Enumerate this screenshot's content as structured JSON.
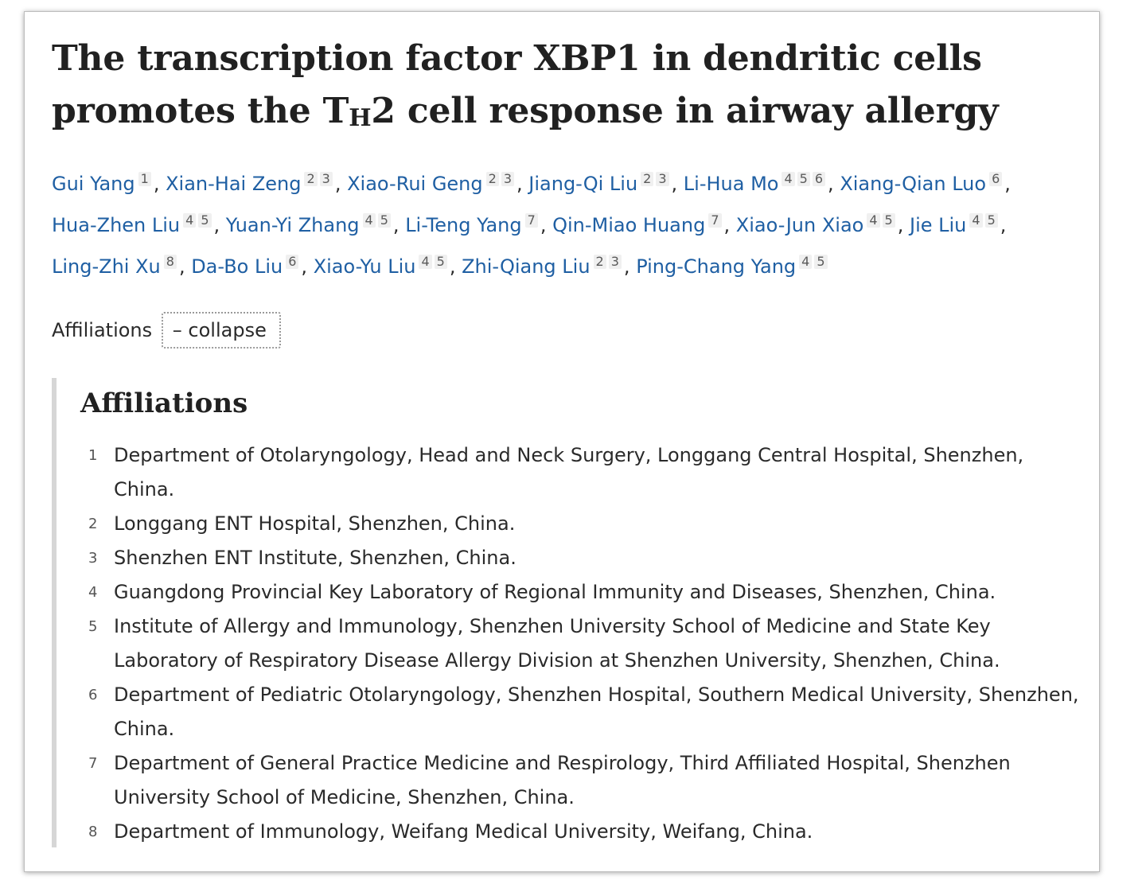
{
  "title": {
    "part1": "The transcription factor XBP1 in dendritic cells promotes the T",
    "subscript": "H",
    "part2": "2 cell response in airway allergy"
  },
  "authors": [
    {
      "name": "Gui Yang",
      "affs": [
        "1"
      ]
    },
    {
      "name": "Xian-Hai Zeng",
      "affs": [
        "2",
        "3"
      ]
    },
    {
      "name": "Xiao-Rui Geng",
      "affs": [
        "2",
        "3"
      ]
    },
    {
      "name": "Jiang-Qi Liu",
      "affs": [
        "2",
        "3"
      ]
    },
    {
      "name": "Li-Hua Mo",
      "affs": [
        "4",
        "5",
        "6"
      ]
    },
    {
      "name": "Xiang-Qian Luo",
      "affs": [
        "6"
      ]
    },
    {
      "name": "Hua-Zhen Liu",
      "affs": [
        "4",
        "5"
      ]
    },
    {
      "name": "Yuan-Yi Zhang",
      "affs": [
        "4",
        "5"
      ]
    },
    {
      "name": "Li-Teng Yang",
      "affs": [
        "7"
      ]
    },
    {
      "name": "Qin-Miao Huang",
      "affs": [
        "7"
      ]
    },
    {
      "name": "Xiao-Jun Xiao",
      "affs": [
        "4",
        "5"
      ]
    },
    {
      "name": "Jie Liu",
      "affs": [
        "4",
        "5"
      ]
    },
    {
      "name": "Ling-Zhi Xu",
      "affs": [
        "8"
      ]
    },
    {
      "name": "Da-Bo Liu",
      "affs": [
        "6"
      ]
    },
    {
      "name": "Xiao-Yu Liu",
      "affs": [
        "4",
        "5"
      ]
    },
    {
      "name": "Zhi-Qiang Liu",
      "affs": [
        "2",
        "3"
      ]
    },
    {
      "name": "Ping-Chang Yang",
      "affs": [
        "4",
        "5"
      ]
    }
  ],
  "affiliations_toggle": {
    "label": "Affiliations",
    "collapse_label": "– collapse"
  },
  "affiliations_section": {
    "heading": "Affiliations",
    "items": [
      {
        "num": "1",
        "text": "Department of Otolaryngology, Head and Neck Surgery, Longgang Central Hospital, Shenzhen, China."
      },
      {
        "num": "2",
        "text": "Longgang ENT Hospital, Shenzhen, China."
      },
      {
        "num": "3",
        "text": "Shenzhen ENT Institute, Shenzhen, China."
      },
      {
        "num": "4",
        "text": "Guangdong Provincial Key Laboratory of Regional Immunity and Diseases, Shenzhen, China."
      },
      {
        "num": "5",
        "text": "Institute of Allergy and Immunology, Shenzhen University School of Medicine and State Key Laboratory of Respiratory Disease Allergy Division at Shenzhen University, Shenzhen, China."
      },
      {
        "num": "6",
        "text": "Department of Pediatric Otolaryngology, Shenzhen Hospital, Southern Medical University, Shenzhen, China."
      },
      {
        "num": "7",
        "text": "Department of General Practice Medicine and Respirology, Third Affiliated Hospital, Shenzhen University School of Medicine, Shenzhen, China."
      },
      {
        "num": "8",
        "text": "Department of Immunology, Weifang Medical University, Weifang, China."
      }
    ]
  },
  "colors": {
    "author_link": "#1f5fa3",
    "text": "#2a2a2a",
    "section_border": "#d6d6d6"
  }
}
